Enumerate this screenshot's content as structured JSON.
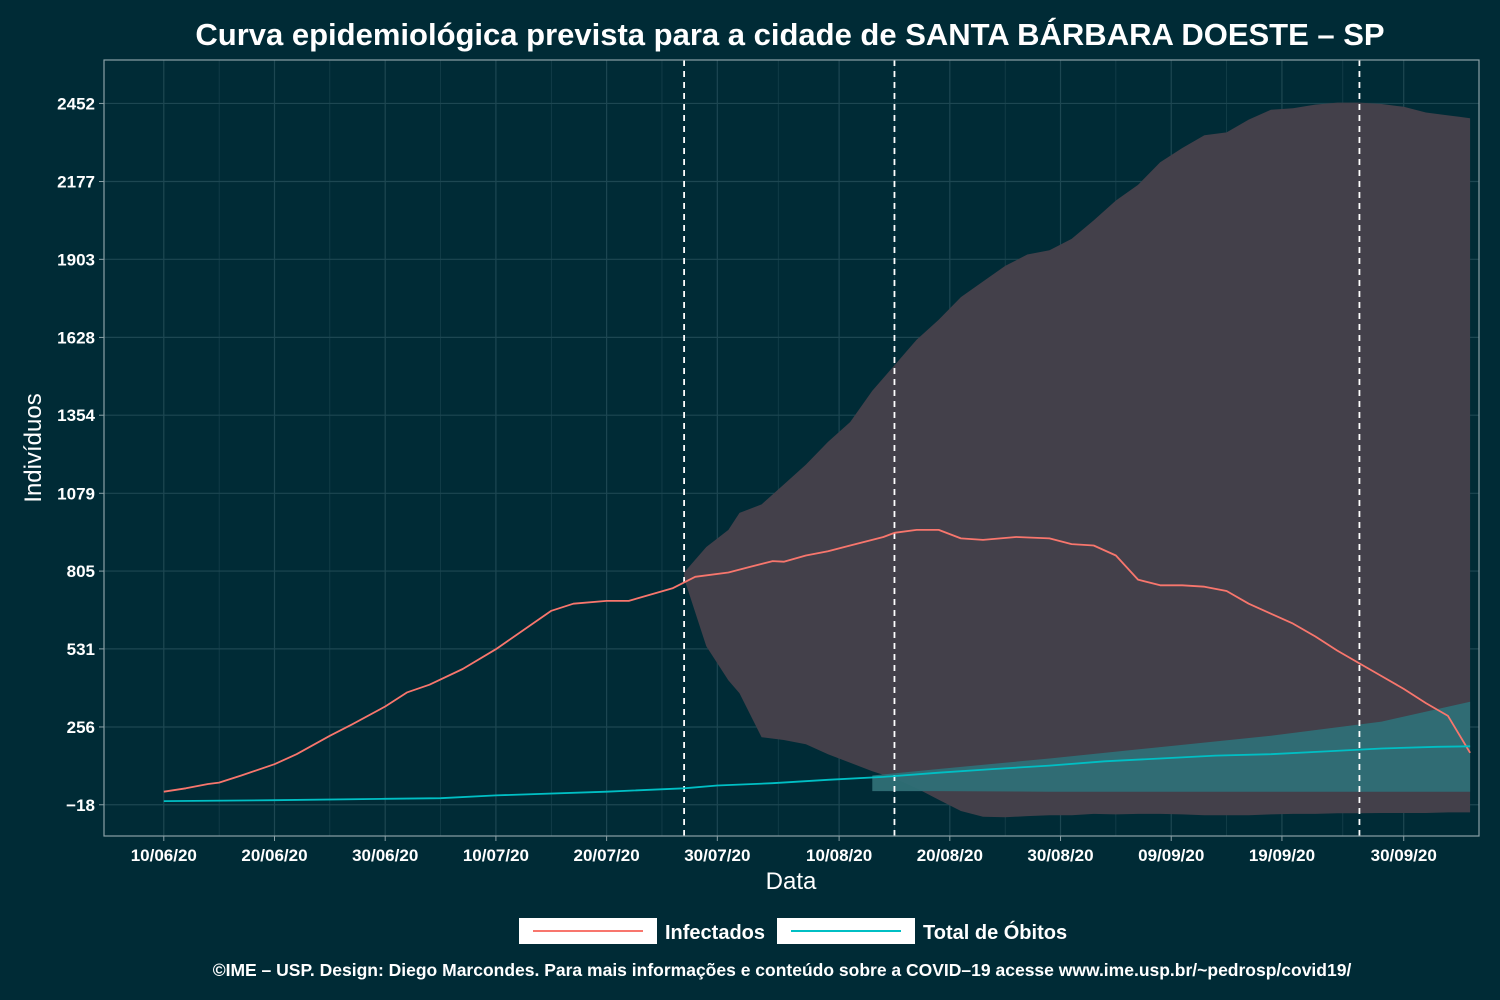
{
  "colors": {
    "background": "#002b36",
    "infectados": "#f8766d",
    "obitos": "#00bfc4",
    "band": "#43404a",
    "obitos_band": "#2f6f76",
    "grid": "#1d4752",
    "vline": "#ffffff"
  },
  "chart_data": {
    "type": "line",
    "title": "Curva epidemiológica prevista para a cidade de SANTA BÁRBARA DOESTE – SP",
    "xlabel": "Data",
    "ylabel": "Indivíduos",
    "x_tick_labels": [
      "10/06/20",
      "20/06/20",
      "30/06/20",
      "10/07/20",
      "20/07/20",
      "30/07/20",
      "10/08/20",
      "20/08/20",
      "30/08/20",
      "09/09/20",
      "19/09/20",
      "30/09/20"
    ],
    "y_tick_labels": [
      "−18",
      "256",
      "531",
      "805",
      "1079",
      "1354",
      "1628",
      "1903",
      "2177",
      "2452"
    ],
    "y_ticks": [
      -18,
      256,
      531,
      805,
      1079,
      1354,
      1628,
      1903,
      2177,
      2452
    ],
    "x_range_days": [
      -5.4,
      118.8
    ],
    "ylim": [
      -128,
      2605
    ],
    "grid": true,
    "legend_position": "bottom",
    "vertical_lines": [
      "27/07/20",
      "15/08/20",
      "26/09/20"
    ],
    "series": [
      {
        "name": "Infectados",
        "x": [
          0,
          2,
          4,
          5,
          7,
          10,
          12,
          15,
          17,
          20,
          22,
          24,
          27,
          30,
          35,
          37,
          40,
          42,
          46,
          48,
          51,
          53,
          55,
          56,
          58,
          60,
          62,
          65,
          66,
          68,
          70,
          72,
          74,
          77,
          80,
          82,
          84,
          86,
          88,
          90,
          91,
          92,
          94,
          96,
          98,
          100,
          102,
          104,
          106,
          108,
          110,
          112,
          114,
          116,
          118
        ],
        "y": [
          28,
          40,
          55,
          60,
          85,
          125,
          160,
          225,
          265,
          328,
          378,
          405,
          460,
          530,
          665,
          690,
          700,
          700,
          745,
          785,
          800,
          820,
          840,
          838,
          860,
          875,
          895,
          925,
          940,
          950,
          950,
          920,
          915,
          925,
          920,
          900,
          895,
          860,
          775,
          755,
          755,
          755,
          750,
          735,
          690,
          655,
          620,
          575,
          525,
          480,
          435,
          390,
          340,
          295,
          165
        ]
      },
      {
        "name": "Total de Óbitos",
        "x": [
          0,
          10,
          20,
          25,
          30,
          40,
          47,
          50,
          55,
          60,
          65,
          70,
          75,
          80,
          85,
          90,
          95,
          100,
          105,
          110,
          115,
          118
        ],
        "y": [
          -5,
          -2,
          3,
          5,
          15,
          28,
          40,
          50,
          58,
          70,
          80,
          95,
          108,
          120,
          135,
          145,
          155,
          160,
          170,
          180,
          186,
          188
        ]
      }
    ],
    "uncertainty_band": {
      "x": [
        47,
        49,
        51,
        52,
        54,
        56,
        58,
        60,
        62,
        64,
        66,
        68,
        70,
        72,
        74,
        76,
        78,
        80,
        82,
        84,
        86,
        88,
        90,
        92,
        94,
        96,
        98,
        100,
        102,
        104,
        106,
        108,
        110,
        112,
        114,
        116,
        117,
        118
      ],
      "upper": [
        800,
        890,
        950,
        1010,
        1040,
        1110,
        1180,
        1260,
        1330,
        1440,
        1530,
        1620,
        1690,
        1770,
        1825,
        1880,
        1920,
        1935,
        1975,
        2040,
        2110,
        2165,
        2245,
        2295,
        2340,
        2350,
        2395,
        2430,
        2435,
        2448,
        2455,
        2455,
        2450,
        2440,
        2420,
        2410,
        2405,
        2400
      ],
      "lower": [
        780,
        540,
        420,
        375,
        220,
        210,
        195,
        160,
        130,
        100,
        75,
        40,
        0,
        -40,
        -60,
        -62,
        -58,
        -55,
        -55,
        -50,
        -52,
        -50,
        -50,
        -52,
        -55,
        -55,
        -55,
        -52,
        -50,
        -50,
        -48,
        -48,
        -47,
        -47,
        -47,
        -45,
        -45,
        -45
      ]
    },
    "obitos_band": {
      "x": [
        64,
        70,
        80,
        90,
        100,
        110,
        118
      ],
      "upper": [
        85,
        108,
        145,
        185,
        225,
        275,
        345
      ],
      "lower": [
        30,
        30,
        28,
        28,
        28,
        28,
        28
      ]
    }
  },
  "legend": {
    "items": [
      "Infectados",
      "Total de Óbitos"
    ]
  },
  "footer": "©IME – USP. Design: Diego Marcondes. Para mais informações e conteúdo sobre a COVID–19 acesse www.ime.usp.br/~pedrosp/covid19/"
}
